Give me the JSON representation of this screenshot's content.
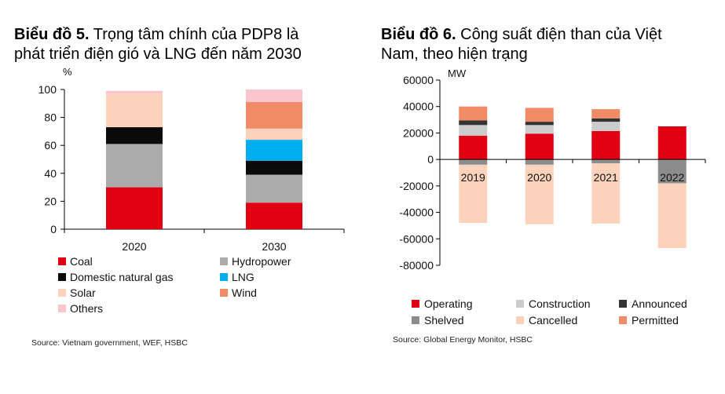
{
  "colors": {
    "coal": "#e00012",
    "hydropower": "#ababab",
    "domestic_gas": "#0a0a0a",
    "lng": "#00aeef",
    "solar": "#fbd3bc",
    "wind": "#f08b65",
    "others": "#fac5cd",
    "operating": "#e00012",
    "construction": "#cccccc",
    "announced": "#333333",
    "shelved": "#8c8c8c",
    "cancelled": "#fbd3bc",
    "permitted": "#f08b65"
  },
  "left": {
    "title_bold": "Biểu đồ 5.",
    "title_rest": " Trọng tâm chính của PDP8 là",
    "title_line2": "phát triển điện gió và LNG đến năm 2030",
    "source": "Source: Vietnam government, WEF, HSBC"
  },
  "right": {
    "title_bold": "Biểu đồ 6.",
    "title_rest": " Công suất điện than của Việt",
    "title_line2": "Nam, theo hiện trạng",
    "source": "Source: Global Energy Monitor, HSBC"
  },
  "chart_data": [
    {
      "type": "bar",
      "stacked": true,
      "ylabel": "%",
      "ylim": [
        0,
        100
      ],
      "yticks": [
        0,
        20,
        40,
        60,
        80,
        100
      ],
      "categories": [
        "2020",
        "2030"
      ],
      "series": [
        {
          "name": "Coal",
          "key": "coal",
          "values": [
            30,
            19
          ]
        },
        {
          "name": "Hydropower",
          "key": "hydropower",
          "values": [
            31,
            20
          ]
        },
        {
          "name": "Domestic natural gas",
          "key": "domestic_gas",
          "values": [
            12,
            10
          ]
        },
        {
          "name": "LNG",
          "key": "lng",
          "values": [
            0,
            15
          ]
        },
        {
          "name": "Solar",
          "key": "solar",
          "values": [
            24,
            8
          ]
        },
        {
          "name": "Wind",
          "key": "wind",
          "values": [
            0,
            19
          ]
        },
        {
          "name": "Others",
          "key": "others",
          "values": [
            2,
            9
          ]
        }
      ],
      "legend": [
        "Coal",
        "Hydropower",
        "Domestic natural gas",
        "LNG",
        "Solar",
        "Wind",
        "Others"
      ],
      "legend_position": "bottom"
    },
    {
      "type": "bar",
      "stacked": true,
      "ylabel": "MW",
      "ylim": [
        -80000,
        60000
      ],
      "yticks": [
        60000,
        40000,
        20000,
        0,
        -20000,
        -40000,
        -60000,
        -80000
      ],
      "ytick_labels": [
        "60000",
        "40000",
        "20000",
        "0",
        "-20000",
        "-40000",
        "-60000",
        "-80000"
      ],
      "categories": [
        "2019",
        "2020",
        "2021",
        "2022"
      ],
      "series": [
        {
          "name": "Operating",
          "key": "operating",
          "values": [
            18000,
            19500,
            21500,
            25000
          ]
        },
        {
          "name": "Construction",
          "key": "construction",
          "values": [
            8000,
            6500,
            7000,
            0
          ]
        },
        {
          "name": "Announced",
          "key": "announced",
          "values": [
            3500,
            2500,
            2500,
            0
          ]
        },
        {
          "name": "Permitted",
          "key": "permitted",
          "values": [
            10500,
            10500,
            7000,
            0
          ]
        },
        {
          "name": "Shelved",
          "key": "shelved",
          "values": [
            -4000,
            -4000,
            -3000,
            -18000
          ]
        },
        {
          "name": "Cancelled",
          "key": "cancelled",
          "values": [
            -44000,
            -45000,
            -45500,
            -49000
          ]
        }
      ],
      "legend": [
        "Operating",
        "Construction",
        "Announced",
        "Shelved",
        "Cancelled",
        "Permitted"
      ],
      "legend_position": "bottom"
    }
  ]
}
